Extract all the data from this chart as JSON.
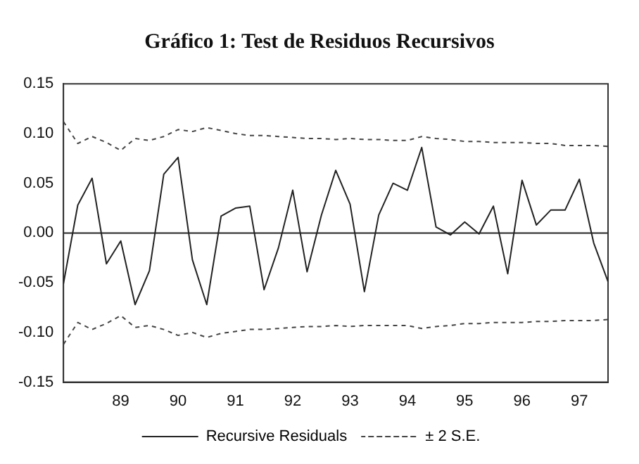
{
  "chart_data": {
    "type": "line",
    "title": "Gráfico 1: Test de Residuos Recursivos",
    "x": [
      1988,
      1988.25,
      1988.5,
      1988.75,
      1989,
      1989.25,
      1989.5,
      1989.75,
      1990,
      1990.25,
      1990.5,
      1990.75,
      1991,
      1991.25,
      1991.5,
      1991.75,
      1992,
      1992.25,
      1992.5,
      1992.75,
      1993,
      1993.25,
      1993.5,
      1993.75,
      1994,
      1994.25,
      1994.5,
      1994.75,
      1995,
      1995.25,
      1995.5,
      1995.75,
      1996,
      1996.25,
      1996.5,
      1996.75,
      1997,
      1997.25,
      1997.5
    ],
    "series": [
      {
        "name": "Recursive Residuals",
        "color": "#222222",
        "line_style": "solid",
        "values": [
          -0.051,
          0.028,
          0.055,
          -0.031,
          -0.008,
          -0.072,
          -0.038,
          0.059,
          0.076,
          -0.027,
          -0.072,
          0.017,
          0.025,
          0.027,
          -0.057,
          -0.015,
          0.043,
          -0.039,
          0.018,
          0.063,
          0.029,
          -0.059,
          0.018,
          0.05,
          0.043,
          0.086,
          0.006,
          -0.002,
          0.011,
          -0.001,
          0.027,
          -0.041,
          0.053,
          0.008,
          0.023,
          0.023,
          0.054,
          -0.01,
          -0.049
        ]
      },
      {
        "name": "± 2 S.E.",
        "color": "#444444",
        "line_style": "dashed",
        "values": [
          0.112,
          0.09,
          0.097,
          0.091,
          0.083,
          0.095,
          0.093,
          0.097,
          0.104,
          0.102,
          0.106,
          0.103,
          0.1,
          0.098,
          0.098,
          0.097,
          0.096,
          0.095,
          0.095,
          0.094,
          0.095,
          0.094,
          0.094,
          0.093,
          0.093,
          0.097,
          0.095,
          0.094,
          0.092,
          0.092,
          0.091,
          0.091,
          0.091,
          0.09,
          0.09,
          0.088,
          0.088,
          0.088,
          0.087
        ]
      },
      {
        "color": "#444444",
        "line_style": "dashed",
        "values": [
          -0.112,
          -0.09,
          -0.097,
          -0.091,
          -0.083,
          -0.095,
          -0.093,
          -0.097,
          -0.103,
          -0.1,
          -0.105,
          -0.101,
          -0.099,
          -0.097,
          -0.097,
          -0.096,
          -0.095,
          -0.094,
          -0.094,
          -0.093,
          -0.094,
          -0.093,
          -0.093,
          -0.093,
          -0.093,
          -0.096,
          -0.094,
          -0.093,
          -0.091,
          -0.091,
          -0.09,
          -0.09,
          -0.09,
          -0.089,
          -0.089,
          -0.088,
          -0.088,
          -0.088,
          -0.087
        ]
      }
    ],
    "xlim": [
      1988,
      1997.5
    ],
    "xticks": [
      {
        "value": 1989,
        "label": "89"
      },
      {
        "value": 1990,
        "label": "90"
      },
      {
        "value": 1991,
        "label": "91"
      },
      {
        "value": 1992,
        "label": "92"
      },
      {
        "value": 1993,
        "label": "93"
      },
      {
        "value": 1994,
        "label": "94"
      },
      {
        "value": 1995,
        "label": "95"
      },
      {
        "value": 1996,
        "label": "96"
      },
      {
        "value": 1997,
        "label": "97"
      }
    ],
    "ylim": [
      -0.15,
      0.15
    ],
    "yticks": [
      {
        "value": -0.15,
        "label": "-0.15"
      },
      {
        "value": -0.1,
        "label": "-0.10"
      },
      {
        "value": -0.05,
        "label": "-0.05"
      },
      {
        "value": 0,
        "label": "0.00"
      },
      {
        "value": 0.05,
        "label": "0.05"
      },
      {
        "value": 0.1,
        "label": "0.10"
      },
      {
        "value": 0.15,
        "label": "0.15"
      }
    ],
    "ref_lines": [
      {
        "axis": "y",
        "value": 0,
        "color": "#222222"
      }
    ],
    "grid": false,
    "legend": "bottom",
    "marker": "none"
  }
}
